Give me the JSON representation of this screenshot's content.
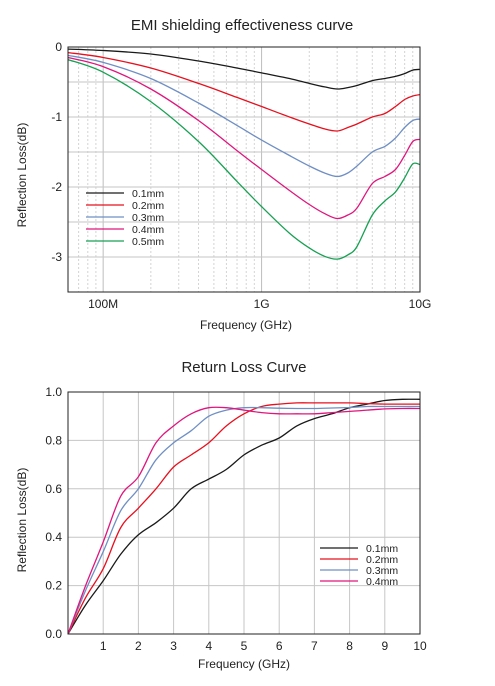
{
  "chart_data": [
    {
      "type": "line",
      "title": "EMI shielding effectiveness curve",
      "xlabel": "Frequency (GHz)",
      "ylabel": "Reflection Loss(dB)",
      "xscale": "log",
      "xlim": [
        0.06,
        10
      ],
      "ylim": [
        -3.5,
        0
      ],
      "x_ticks": [
        {
          "value": 0.1,
          "label": "100M"
        },
        {
          "value": 1,
          "label": "1G"
        },
        {
          "value": 10,
          "label": "10G"
        }
      ],
      "y_ticks": [
        {
          "value": 0,
          "label": "0"
        },
        {
          "value": -1,
          "label": "-1"
        },
        {
          "value": -2,
          "label": "-2"
        },
        {
          "value": -3,
          "label": "-3"
        }
      ],
      "grid": true,
      "legend_position": "bottom-left",
      "x": [
        0.06,
        0.1,
        0.2,
        0.4,
        0.7,
        1.0,
        1.5,
        2.0,
        2.5,
        3.0,
        3.5,
        4.0,
        5.0,
        6.0,
        7.0,
        8.0,
        9.0,
        10.0
      ],
      "series": [
        {
          "name": "0.1mm",
          "color": "#1a1a1a",
          "values": [
            -0.03,
            -0.05,
            -0.1,
            -0.2,
            -0.3,
            -0.37,
            -0.45,
            -0.52,
            -0.57,
            -0.6,
            -0.58,
            -0.55,
            -0.48,
            -0.45,
            -0.42,
            -0.38,
            -0.33,
            -0.32
          ]
        },
        {
          "name": "0.2mm",
          "color": "#e8101e",
          "values": [
            -0.08,
            -0.15,
            -0.3,
            -0.52,
            -0.72,
            -0.85,
            -1.0,
            -1.1,
            -1.17,
            -1.2,
            -1.15,
            -1.1,
            -1.0,
            -0.95,
            -0.85,
            -0.75,
            -0.7,
            -0.68
          ]
        },
        {
          "name": "0.3mm",
          "color": "#6f8fc4",
          "values": [
            -0.12,
            -0.22,
            -0.45,
            -0.8,
            -1.12,
            -1.33,
            -1.55,
            -1.7,
            -1.8,
            -1.85,
            -1.8,
            -1.7,
            -1.5,
            -1.42,
            -1.3,
            -1.15,
            -1.05,
            -1.03
          ]
        },
        {
          "name": "0.4mm",
          "color": "#e0167e",
          "values": [
            -0.15,
            -0.28,
            -0.6,
            -1.05,
            -1.48,
            -1.75,
            -2.05,
            -2.25,
            -2.38,
            -2.45,
            -2.4,
            -2.3,
            -1.95,
            -1.85,
            -1.75,
            -1.55,
            -1.35,
            -1.32
          ]
        },
        {
          "name": "0.5mm",
          "color": "#17a152",
          "values": [
            -0.18,
            -0.36,
            -0.78,
            -1.35,
            -1.92,
            -2.28,
            -2.66,
            -2.87,
            -2.99,
            -3.03,
            -2.97,
            -2.85,
            -2.4,
            -2.2,
            -2.07,
            -1.87,
            -1.67,
            -1.68
          ]
        }
      ]
    },
    {
      "type": "line",
      "title": "Return Loss Curve",
      "xlabel": "Frequency (GHz)",
      "ylabel": "Reflection Loss(dB)",
      "xlim": [
        0,
        10
      ],
      "ylim": [
        0,
        1.0
      ],
      "x_ticks": [
        {
          "value": 1,
          "label": "1"
        },
        {
          "value": 2,
          "label": "2"
        },
        {
          "value": 3,
          "label": "3"
        },
        {
          "value": 4,
          "label": "4"
        },
        {
          "value": 5,
          "label": "5"
        },
        {
          "value": 6,
          "label": "6"
        },
        {
          "value": 7,
          "label": "7"
        },
        {
          "value": 8,
          "label": "8"
        },
        {
          "value": 9,
          "label": "9"
        },
        {
          "value": 10,
          "label": "10"
        }
      ],
      "y_ticks": [
        {
          "value": 0,
          "label": "0.0"
        },
        {
          "value": 0.2,
          "label": "0.2"
        },
        {
          "value": 0.4,
          "label": "0.4"
        },
        {
          "value": 0.6,
          "label": "0.6"
        },
        {
          "value": 0.8,
          "label": "0.8"
        },
        {
          "value": 1.0,
          "label": "1.0"
        }
      ],
      "grid": true,
      "legend_position": "bottom-right",
      "x": [
        0,
        0.5,
        1.0,
        1.5,
        2.0,
        2.5,
        3.0,
        3.5,
        4.0,
        4.5,
        5.0,
        5.5,
        6.0,
        6.5,
        7.0,
        7.5,
        8.0,
        8.5,
        9.0,
        9.5,
        10.0
      ],
      "series": [
        {
          "name": "0.1mm",
          "color": "#1a1a1a",
          "values": [
            0.0,
            0.12,
            0.22,
            0.33,
            0.41,
            0.46,
            0.52,
            0.6,
            0.64,
            0.68,
            0.74,
            0.78,
            0.81,
            0.86,
            0.89,
            0.91,
            0.935,
            0.95,
            0.965,
            0.97,
            0.97
          ]
        },
        {
          "name": "0.2mm",
          "color": "#e8101e",
          "values": [
            0.0,
            0.15,
            0.27,
            0.44,
            0.52,
            0.6,
            0.69,
            0.74,
            0.79,
            0.86,
            0.91,
            0.94,
            0.95,
            0.955,
            0.955,
            0.955,
            0.955,
            0.952,
            0.95,
            0.95,
            0.95
          ]
        },
        {
          "name": "0.3mm",
          "color": "#6f8fc4",
          "values": [
            0.0,
            0.18,
            0.34,
            0.51,
            0.6,
            0.72,
            0.79,
            0.84,
            0.9,
            0.925,
            0.935,
            0.935,
            0.933,
            0.932,
            0.932,
            0.934,
            0.936,
            0.94,
            0.94,
            0.94,
            0.94
          ]
        },
        {
          "name": "0.4mm",
          "color": "#e0167e",
          "values": [
            0.0,
            0.2,
            0.38,
            0.57,
            0.65,
            0.79,
            0.86,
            0.91,
            0.935,
            0.935,
            0.925,
            0.915,
            0.91,
            0.91,
            0.91,
            0.915,
            0.92,
            0.925,
            0.93,
            0.932,
            0.932
          ]
        }
      ]
    }
  ]
}
